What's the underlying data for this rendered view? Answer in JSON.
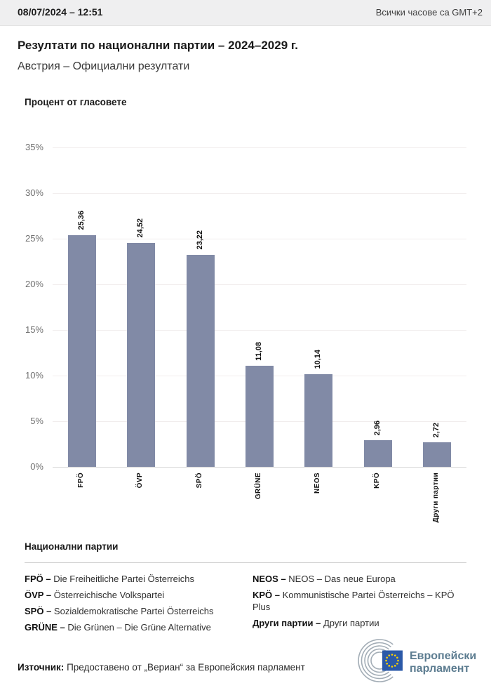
{
  "header": {
    "datetime": "08/07/2024 – 12:51",
    "timezone_note": "Всички часове са GMT+2"
  },
  "page": {
    "title": "Резултати по национални партии – 2024–2029 г.",
    "subtitle": "Австрия – Официални резултати"
  },
  "chart_data": {
    "type": "bar",
    "title": "Процент от гласовете",
    "categories": [
      "FPÖ",
      "ÖVP",
      "SPÖ",
      "GRÜNE",
      "NEOS",
      "KPÖ",
      "Други партии"
    ],
    "values": [
      25.36,
      24.52,
      23.22,
      11.08,
      10.14,
      2.96,
      2.72
    ],
    "value_labels": [
      "25,36",
      "24,52",
      "23,22",
      "11,08",
      "10,14",
      "2,96",
      "2,72"
    ],
    "xlabel": "",
    "ylabel": "",
    "ylim": [
      0,
      35
    ],
    "ytick_step": 5,
    "ytick_suffix": "%",
    "grid": true,
    "legend_position": "none",
    "bar_color": "#818aa6"
  },
  "legend": {
    "heading": "Национални партии",
    "column_left": [
      {
        "abbr": "FPÖ –",
        "name": "Die Freiheitliche Partei Österreichs"
      },
      {
        "abbr": "ÖVP –",
        "name": "Österreichische Volkspartei"
      },
      {
        "abbr": "SPÖ –",
        "name": "Sozialdemokratische Partei Österreichs"
      },
      {
        "abbr": "GRÜNE –",
        "name": "Die Grünen – Die Grüne Alternative"
      }
    ],
    "column_right": [
      {
        "abbr": "NEOS –",
        "name": "NEOS – Das neue Europa"
      },
      {
        "abbr": "KPÖ –",
        "name": "Kommunistische Partei Österreichs – KPÖ Plus"
      },
      {
        "abbr": "Други партии –",
        "name": "Други партии"
      }
    ]
  },
  "footer": {
    "source_label": "Източник:",
    "source_text": "Предоставено от „Вериан“ за Европейския парламент",
    "logo_line1": "Европейски",
    "logo_line2": "парламент"
  },
  "colors": {
    "bar": "#818aa6",
    "gridline": "#f1eded",
    "axisline": "#d7d7d7",
    "tick_text": "#707070",
    "topbar_bg": "#efeff0",
    "logo_text": "#5c7c90",
    "flag_blue": "#2b59a8",
    "star_yellow": "#ffd200",
    "arc_gray": "#a3adb6"
  }
}
